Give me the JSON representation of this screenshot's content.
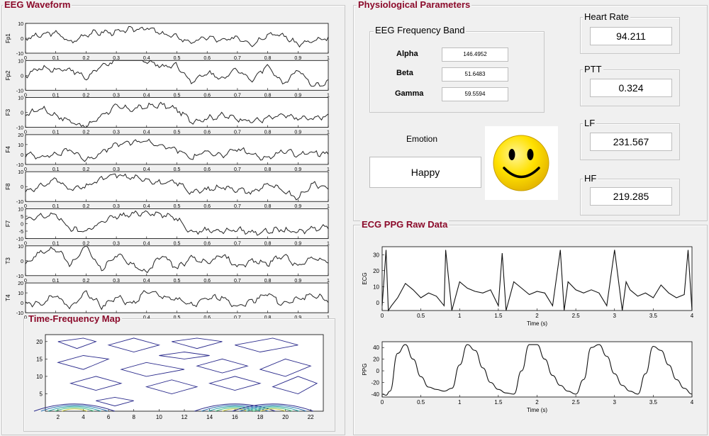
{
  "eeg": {
    "title": "EEG Waveform",
    "x_ticks": [
      "0",
      "0.1",
      "0.2",
      "0.3",
      "0.4",
      "0.5",
      "0.6",
      "0.7",
      "0.8",
      "0.9",
      "1"
    ],
    "channels": [
      {
        "name": "Fp1",
        "yticks": [
          "10",
          "0",
          "-10"
        ],
        "ylim": [
          -10,
          10
        ]
      },
      {
        "name": "Fp2",
        "yticks": [
          "10",
          "0",
          "-10"
        ],
        "ylim": [
          -10,
          10
        ]
      },
      {
        "name": "F3",
        "yticks": [
          "10",
          "0",
          "-10"
        ],
        "ylim": [
          -10,
          10
        ]
      },
      {
        "name": "F4",
        "yticks": [
          "20",
          "10",
          "0",
          "-10"
        ],
        "ylim": [
          -10,
          20
        ]
      },
      {
        "name": "F8",
        "yticks": [
          "10",
          "0",
          "-10"
        ],
        "ylim": [
          -10,
          10
        ]
      },
      {
        "name": "F7",
        "yticks": [
          "10",
          "5",
          "0",
          "-5",
          "-10"
        ],
        "ylim": [
          -10,
          10
        ]
      },
      {
        "name": "T3",
        "yticks": [
          "10",
          "0",
          "-10"
        ],
        "ylim": [
          -10,
          10
        ]
      },
      {
        "name": "T4",
        "yticks": [
          "20",
          "10",
          "0",
          "-10"
        ],
        "ylim": [
          -10,
          20
        ]
      }
    ]
  },
  "tf_map": {
    "title": "Time-Frequency Map",
    "x_ticks": [
      "2",
      "4",
      "6",
      "8",
      "10",
      "12",
      "14",
      "16",
      "18",
      "20",
      "22"
    ],
    "y_ticks": [
      "20",
      "15",
      "10",
      "5"
    ]
  },
  "physio": {
    "title": "Physiological Parameters",
    "band_group_title": "EEG Frequency Band",
    "bands": [
      {
        "label": "Alpha",
        "value": "146.4952"
      },
      {
        "label": "Beta",
        "value": "51.6483"
      },
      {
        "label": "Gamma",
        "value": "59.5594"
      }
    ],
    "emotion_label": "Emotion",
    "emotion_value": "Happy",
    "emotion_icon": "smiley-face-icon",
    "heart_rate": {
      "title": "Heart Rate",
      "value": "94.211"
    },
    "ptt": {
      "title": "PTT",
      "value": "0.324"
    },
    "lf": {
      "title": "LF",
      "value": "231.567"
    },
    "hf": {
      "title": "HF",
      "value": "219.285"
    }
  },
  "raw": {
    "title": "ECG PPG Raw Data",
    "ecg": {
      "ylabel": "ECG",
      "xlabel": "Time (s)",
      "yticks": [
        "30",
        "20",
        "10",
        "0"
      ],
      "xticks": [
        "0",
        "0.5",
        "1",
        "1.5",
        "2",
        "2.5",
        "3",
        "3.5",
        "4"
      ]
    },
    "ppg": {
      "ylabel": "PPG",
      "xlabel": "Time (s)",
      "yticks": [
        "40",
        "20",
        "0",
        "-20",
        "-40"
      ],
      "xticks": [
        "0",
        "0.5",
        "1",
        "1.5",
        "2",
        "2.5",
        "3",
        "3.5",
        "4"
      ]
    }
  },
  "chart_data": [
    {
      "type": "line",
      "x": [
        0,
        0.05,
        0.1,
        0.15,
        0.2,
        0.25,
        0.3,
        0.35,
        0.4,
        0.45,
        0.5,
        0.55,
        0.6,
        0.65,
        0.7,
        0.75,
        0.8,
        0.85,
        0.9,
        0.95,
        1.0
      ],
      "series": [
        {
          "name": "Fp1",
          "values": [
            0,
            2,
            4,
            -3,
            3,
            4,
            4,
            6,
            7,
            3,
            1,
            -3,
            1,
            -2,
            1,
            -4,
            3,
            2,
            -4,
            -2,
            0
          ]
        },
        {
          "name": "Fp2",
          "values": [
            0,
            5,
            4,
            4,
            -2,
            6,
            10,
            12,
            10,
            6,
            7,
            -5,
            2,
            -2,
            4,
            -3,
            7,
            -6,
            4,
            -8,
            -4
          ]
        },
        {
          "name": "F3",
          "values": [
            -2,
            3,
            -2,
            -6,
            -10,
            -2,
            4,
            2,
            4,
            5,
            2,
            -6,
            -4,
            -2,
            -4,
            -6,
            -4,
            -2,
            -4,
            -4,
            -2
          ]
        },
        {
          "name": "F4",
          "values": [
            0,
            -2,
            0,
            5,
            -6,
            2,
            10,
            12,
            14,
            8,
            5,
            -4,
            4,
            -2,
            6,
            0,
            -4,
            4,
            0,
            2,
            0
          ]
        },
        {
          "name": "F8",
          "values": [
            -3,
            0,
            5,
            -2,
            0,
            5,
            8,
            6,
            5,
            2,
            3,
            -4,
            -2,
            0,
            -2,
            -4,
            2,
            -3,
            -8,
            2,
            -1
          ]
        },
        {
          "name": "F7",
          "values": [
            2,
            5,
            6,
            -4,
            -5,
            1,
            5,
            6,
            8,
            6,
            4,
            -6,
            -4,
            -5,
            -4,
            -6,
            -5,
            -4,
            -6,
            -3,
            -2
          ]
        },
        {
          "name": "T3",
          "values": [
            -2,
            6,
            8,
            -3,
            10,
            -6,
            4,
            -2,
            -8,
            4,
            -5,
            2,
            -2,
            4,
            -4,
            0,
            -2,
            4,
            -4,
            2,
            0
          ]
        },
        {
          "name": "T4",
          "values": [
            0,
            -2,
            8,
            -6,
            12,
            -4,
            6,
            -2,
            12,
            6,
            4,
            -3,
            4,
            6,
            -4,
            2,
            10,
            -2,
            4,
            8,
            2
          ]
        }
      ],
      "xlim": [
        0,
        1
      ]
    },
    {
      "type": "line",
      "x": [
        0,
        0.05,
        0.08,
        0.12,
        0.2,
        0.3,
        0.4,
        0.5,
        0.6,
        0.7,
        0.8,
        0.82,
        0.9,
        1.0,
        1.1,
        1.2,
        1.3,
        1.4,
        1.5,
        1.55,
        1.6,
        1.7,
        1.8,
        1.9,
        2.0,
        2.1,
        2.2,
        2.3,
        2.35,
        2.4,
        2.5,
        2.6,
        2.7,
        2.8,
        2.9,
        3.0,
        3.1,
        3.15,
        3.2,
        3.3,
        3.4,
        3.5,
        3.6,
        3.7,
        3.8,
        3.9,
        3.95,
        4.0
      ],
      "series": [
        {
          "name": "ECG",
          "values": [
            -2,
            33,
            -5,
            -2,
            3,
            12,
            8,
            3,
            6,
            4,
            -2,
            33,
            -5,
            13,
            9,
            7,
            6,
            8,
            -2,
            31,
            -5,
            13,
            9,
            5,
            7,
            6,
            -2,
            33,
            -5,
            13,
            8,
            6,
            8,
            6,
            -2,
            33,
            -5,
            13,
            8,
            4,
            6,
            3,
            11,
            6,
            3,
            5,
            33,
            -5
          ]
        }
      ],
      "xlim": [
        0,
        4
      ],
      "ylim": [
        -5,
        35
      ]
    },
    {
      "type": "line",
      "x": [
        0,
        0.05,
        0.1,
        0.2,
        0.3,
        0.4,
        0.5,
        0.6,
        0.7,
        0.8,
        0.9,
        1.0,
        1.1,
        1.2,
        1.3,
        1.4,
        1.5,
        1.6,
        1.7,
        1.8,
        1.9,
        2.0,
        2.1,
        2.2,
        2.3,
        2.4,
        2.5,
        2.6,
        2.7,
        2.8,
        2.9,
        3.0,
        3.1,
        3.2,
        3.3,
        3.4,
        3.5,
        3.6,
        3.7,
        3.8,
        3.9,
        4.0
      ],
      "series": [
        {
          "name": "PPG",
          "values": [
            -40,
            -42,
            -35,
            30,
            45,
            20,
            -10,
            -28,
            -32,
            -35,
            -30,
            10,
            45,
            35,
            5,
            -20,
            -32,
            -38,
            -40,
            0,
            45,
            45,
            20,
            -8,
            -25,
            -35,
            -40,
            -15,
            40,
            45,
            25,
            -5,
            -25,
            -35,
            -40,
            -5,
            42,
            35,
            10,
            -15,
            -30,
            -40
          ]
        }
      ],
      "xlim": [
        0,
        4
      ],
      "ylim": [
        -45,
        50
      ]
    }
  ]
}
